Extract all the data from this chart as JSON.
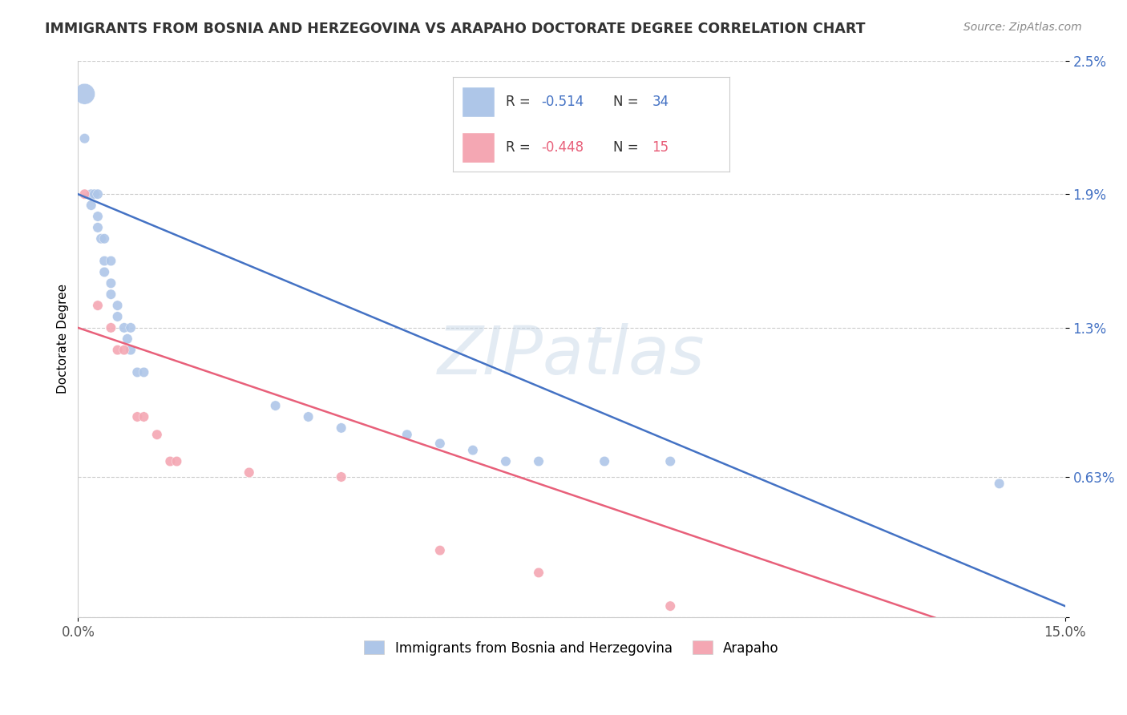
{
  "title": "IMMIGRANTS FROM BOSNIA AND HERZEGOVINA VS ARAPAHO DOCTORATE DEGREE CORRELATION CHART",
  "source": "Source: ZipAtlas.com",
  "ylabel": "Doctorate Degree",
  "xlim": [
    0.0,
    0.15
  ],
  "ylim": [
    0.0,
    0.025
  ],
  "ytick_vals": [
    0.0,
    0.0063,
    0.013,
    0.019,
    0.025
  ],
  "ytick_labels": [
    "",
    "0.63%",
    "1.3%",
    "1.9%",
    "2.5%"
  ],
  "xtick_vals": [
    0.0,
    0.15
  ],
  "xtick_labels": [
    "0.0%",
    "15.0%"
  ],
  "grid_color": "#cccccc",
  "background_color": "#ffffff",
  "blue_color": "#aec6e8",
  "pink_color": "#f4a7b3",
  "blue_line_color": "#4472c4",
  "pink_line_color": "#e8607a",
  "blue_line": [
    [
      0.0,
      0.019
    ],
    [
      0.15,
      0.0005
    ]
  ],
  "pink_line": [
    [
      0.0,
      0.013
    ],
    [
      0.15,
      -0.002
    ]
  ],
  "blue_scatter": [
    [
      0.001,
      0.0235
    ],
    [
      0.001,
      0.0215
    ],
    [
      0.002,
      0.019
    ],
    [
      0.002,
      0.0185
    ],
    [
      0.0025,
      0.019
    ],
    [
      0.003,
      0.019
    ],
    [
      0.003,
      0.018
    ],
    [
      0.003,
      0.0175
    ],
    [
      0.0035,
      0.017
    ],
    [
      0.004,
      0.017
    ],
    [
      0.004,
      0.016
    ],
    [
      0.004,
      0.0155
    ],
    [
      0.005,
      0.016
    ],
    [
      0.005,
      0.015
    ],
    [
      0.005,
      0.0145
    ],
    [
      0.006,
      0.014
    ],
    [
      0.006,
      0.0135
    ],
    [
      0.007,
      0.013
    ],
    [
      0.0075,
      0.0125
    ],
    [
      0.008,
      0.013
    ],
    [
      0.008,
      0.012
    ],
    [
      0.009,
      0.011
    ],
    [
      0.01,
      0.011
    ],
    [
      0.03,
      0.0095
    ],
    [
      0.035,
      0.009
    ],
    [
      0.04,
      0.0085
    ],
    [
      0.05,
      0.0082
    ],
    [
      0.055,
      0.0078
    ],
    [
      0.06,
      0.0075
    ],
    [
      0.065,
      0.007
    ],
    [
      0.07,
      0.007
    ],
    [
      0.08,
      0.007
    ],
    [
      0.09,
      0.007
    ],
    [
      0.14,
      0.006
    ]
  ],
  "blue_sizes_special": [
    [
      0,
      350
    ]
  ],
  "blue_default_size": 80,
  "pink_scatter": [
    [
      0.001,
      0.019
    ],
    [
      0.003,
      0.014
    ],
    [
      0.005,
      0.013
    ],
    [
      0.006,
      0.012
    ],
    [
      0.007,
      0.012
    ],
    [
      0.009,
      0.009
    ],
    [
      0.01,
      0.009
    ],
    [
      0.012,
      0.0082
    ],
    [
      0.014,
      0.007
    ],
    [
      0.015,
      0.007
    ],
    [
      0.026,
      0.0065
    ],
    [
      0.04,
      0.0063
    ],
    [
      0.055,
      0.003
    ],
    [
      0.07,
      0.002
    ],
    [
      0.09,
      0.0005
    ]
  ],
  "pink_default_size": 80,
  "watermark_text": "ZIPatlas",
  "watermark_fontsize": 60,
  "watermark_color": "#c8d8e8",
  "watermark_alpha": 0.5
}
